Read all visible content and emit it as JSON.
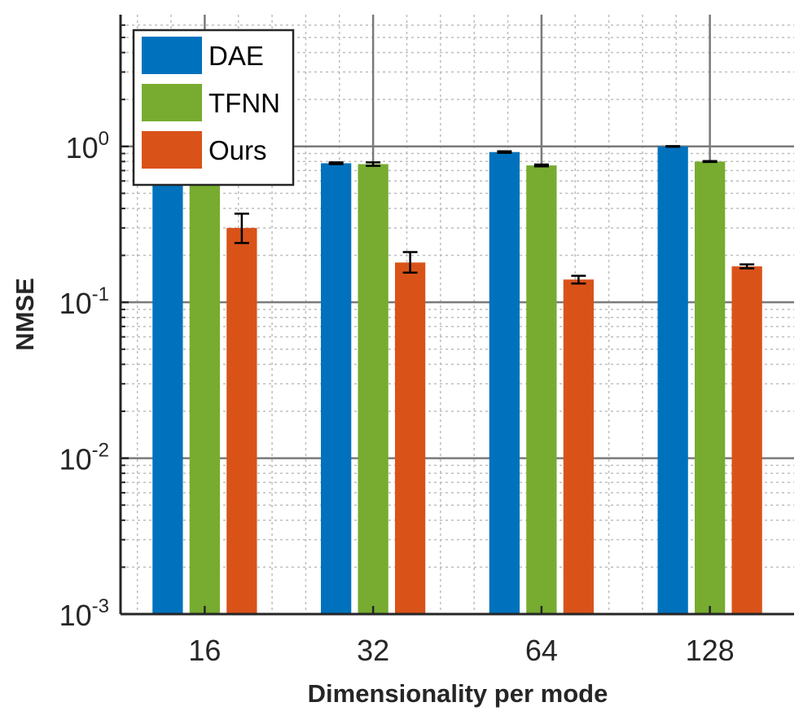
{
  "chart_data": {
    "type": "bar",
    "title": "",
    "xlabel": "Dimensionality per mode",
    "ylabel": "NMSE",
    "yscale": "log",
    "ylim": [
      0.001,
      7
    ],
    "yticks": [
      {
        "value": 0.001,
        "base": "10",
        "exp": "-3"
      },
      {
        "value": 0.01,
        "base": "10",
        "exp": "-2"
      },
      {
        "value": 0.1,
        "base": "10",
        "exp": "-1"
      },
      {
        "value": 1,
        "base": "10",
        "exp": "0"
      }
    ],
    "categories": [
      "16",
      "32",
      "64",
      "128"
    ],
    "series": [
      {
        "name": "DAE",
        "color": "#0072BD",
        "values": [
          0.71,
          0.78,
          0.92,
          1.0
        ],
        "err_low": [
          0.68,
          0.77,
          0.91,
          0.995
        ],
        "err_high": [
          0.74,
          0.79,
          0.93,
          1.005
        ]
      },
      {
        "name": "TFNN",
        "color": "#77AC30",
        "values": [
          0.72,
          0.77,
          0.755,
          0.8
        ],
        "err_low": [
          0.69,
          0.75,
          0.745,
          0.795
        ],
        "err_high": [
          0.75,
          0.79,
          0.765,
          0.805
        ]
      },
      {
        "name": "Ours",
        "color": "#D95319",
        "values": [
          0.3,
          0.18,
          0.14,
          0.17
        ],
        "err_low": [
          0.24,
          0.155,
          0.132,
          0.165
        ],
        "err_high": [
          0.37,
          0.21,
          0.148,
          0.175
        ]
      }
    ],
    "grid": true,
    "minor_grid": true,
    "legend_position": "top-left"
  }
}
